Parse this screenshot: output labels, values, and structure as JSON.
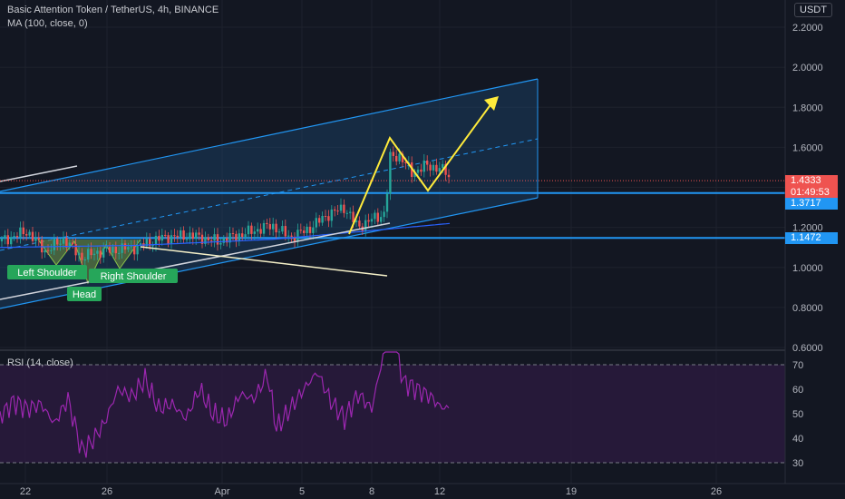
{
  "header": {
    "symbol": "Basic Attention Token / TetherUS, 4h, BINANCE",
    "indicator": "MA (100, close, 0)",
    "currency": "USDT",
    "rsi_label": "RSI (14, close)"
  },
  "colors": {
    "background": "#131722",
    "grid": "#1e222d",
    "up": "#26a69a",
    "down": "#ef5350",
    "channel": "#2196f3",
    "channel_fill": "#1d4f82",
    "yellow": "#ffeb3b",
    "rsi": "#9c27b0",
    "rsi_fill": "#2a1a3d",
    "pattern_fill": "#6f8f3c",
    "label_green": "#26a65a"
  },
  "price_badges": {
    "current": "1.4333",
    "countdown": "01:49:53",
    "support_upper": "1.3717",
    "support_lower": "1.1472"
  },
  "annotations": {
    "left_shoulder": "Left Shoulder",
    "head": "Head",
    "right_shoulder": "Right Shoulder"
  },
  "chart_data": {
    "type": "candlestick",
    "x_ticks": [
      "22",
      "26",
      "Apr",
      "5",
      "8",
      "12",
      "19",
      "26"
    ],
    "price_ticks": [
      2.2,
      2.0,
      1.8,
      1.6,
      1.2,
      1.0,
      0.8,
      0.6
    ],
    "price_tick_labels": [
      "2.2000",
      "2.0000",
      "1.8000",
      "1.6000",
      "1.2000",
      "1.0000",
      "0.8000",
      "0.6000"
    ],
    "price_range": [
      0.6,
      2.28
    ],
    "rsi_ticks": [
      70,
      60,
      50,
      40,
      30
    ],
    "rsi_range": [
      27,
      79
    ],
    "rsi_bands": [
      70,
      30
    ],
    "horizontal_levels": [
      1.3717,
      1.1472
    ],
    "current_price": 1.4333,
    "price_anchors": [
      [
        0,
        1.13
      ],
      [
        30,
        1.18
      ],
      [
        50,
        1.08
      ],
      [
        70,
        1.14
      ],
      [
        90,
        1.05
      ],
      [
        110,
        1.08
      ],
      [
        150,
        1.1
      ],
      [
        180,
        1.15
      ],
      [
        210,
        1.16
      ],
      [
        240,
        1.13
      ],
      [
        270,
        1.17
      ],
      [
        300,
        1.21
      ],
      [
        320,
        1.15
      ],
      [
        340,
        1.19
      ],
      [
        360,
        1.26
      ],
      [
        380,
        1.3
      ],
      [
        395,
        1.2
      ],
      [
        410,
        1.24
      ],
      [
        425,
        1.27
      ],
      [
        430,
        1.55
      ],
      [
        440,
        1.56
      ],
      [
        455,
        1.47
      ],
      [
        470,
        1.51
      ],
      [
        480,
        1.5
      ],
      [
        492,
        1.48
      ],
      [
        497,
        1.43
      ]
    ],
    "rsi_anchors": [
      [
        0,
        49
      ],
      [
        15,
        55
      ],
      [
        30,
        52
      ],
      [
        45,
        54
      ],
      [
        60,
        46
      ],
      [
        75,
        56
      ],
      [
        90,
        35
      ],
      [
        100,
        38
      ],
      [
        115,
        46
      ],
      [
        130,
        60
      ],
      [
        145,
        57
      ],
      [
        160,
        64
      ],
      [
        175,
        52
      ],
      [
        190,
        54
      ],
      [
        205,
        48
      ],
      [
        220,
        60
      ],
      [
        235,
        50
      ],
      [
        250,
        47
      ],
      [
        265,
        58
      ],
      [
        280,
        56
      ],
      [
        295,
        66
      ],
      [
        305,
        44
      ],
      [
        320,
        52
      ],
      [
        335,
        60
      ],
      [
        350,
        67
      ],
      [
        365,
        55
      ],
      [
        380,
        48
      ],
      [
        395,
        58
      ],
      [
        410,
        52
      ],
      [
        425,
        78
      ],
      [
        435,
        80
      ],
      [
        445,
        63
      ],
      [
        460,
        60
      ],
      [
        475,
        57
      ],
      [
        485,
        53
      ],
      [
        495,
        52
      ]
    ]
  }
}
